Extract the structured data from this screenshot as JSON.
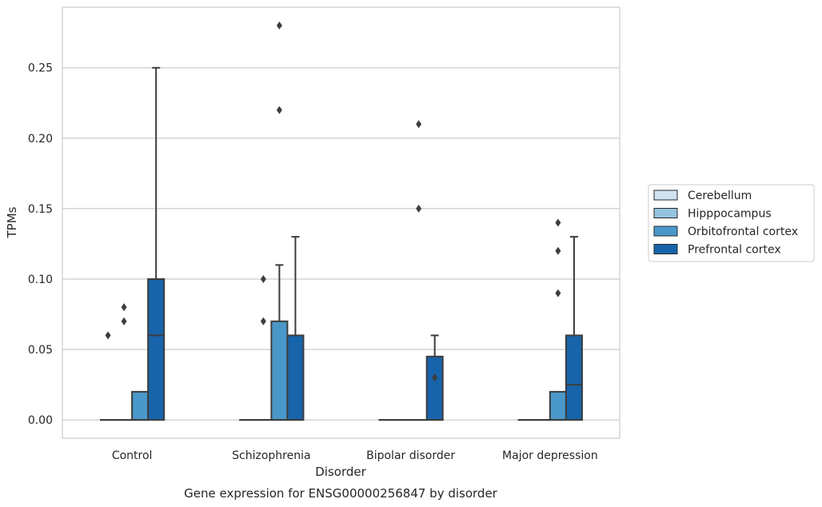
{
  "chart_data": {
    "type": "box",
    "title": "",
    "caption": "Gene expression for ENSG00000256847 by disorder",
    "xlabel": "Disorder",
    "ylabel": "TPMs",
    "ylim": [
      -0.013,
      0.293
    ],
    "yticks": [
      "0.00",
      "0.05",
      "0.10",
      "0.15",
      "0.20",
      "0.25"
    ],
    "ytick_values": [
      0,
      0.05,
      0.1,
      0.15,
      0.2,
      0.25
    ],
    "grid": true,
    "legend_position": "right",
    "categories": [
      "Control",
      "Schizophrenia",
      "Bipolar disorder",
      "Major depression"
    ],
    "series": [
      {
        "name": "Cerebellum",
        "color": "#d0e1f2",
        "boxes": [
          {
            "q1": 0,
            "median": 0,
            "q3": 0,
            "whisker_low": 0,
            "whisker_high": 0,
            "outliers": [
              0.06
            ]
          },
          {
            "q1": 0,
            "median": 0,
            "q3": 0,
            "whisker_low": 0,
            "whisker_high": 0,
            "outliers": []
          },
          {
            "q1": 0,
            "median": 0,
            "q3": 0,
            "whisker_low": 0,
            "whisker_high": 0,
            "outliers": []
          },
          {
            "q1": 0,
            "median": 0,
            "q3": 0,
            "whisker_low": 0,
            "whisker_high": 0,
            "outliers": []
          }
        ]
      },
      {
        "name": "Hipppocampus",
        "color": "#94c4df",
        "boxes": [
          {
            "q1": 0,
            "median": 0,
            "q3": 0,
            "whisker_low": 0,
            "whisker_high": 0,
            "outliers": [
              0.07,
              0.08
            ]
          },
          {
            "q1": 0,
            "median": 0,
            "q3": 0,
            "whisker_low": 0,
            "whisker_high": 0,
            "outliers": [
              0.07,
              0.1
            ]
          },
          {
            "q1": 0,
            "median": 0,
            "q3": 0,
            "whisker_low": 0,
            "whisker_high": 0,
            "outliers": []
          },
          {
            "q1": 0,
            "median": 0,
            "q3": 0,
            "whisker_low": 0,
            "whisker_high": 0,
            "outliers": []
          }
        ]
      },
      {
        "name": "Orbitofrontal cortex",
        "color": "#4a98c9",
        "boxes": [
          {
            "q1": 0,
            "median": 0,
            "q3": 0.02,
            "whisker_low": 0,
            "whisker_high": 0.02,
            "outliers": []
          },
          {
            "q1": 0,
            "median": 0,
            "q3": 0.07,
            "whisker_low": 0,
            "whisker_high": 0.11,
            "outliers": [
              0.22,
              0.28
            ]
          },
          {
            "q1": 0,
            "median": 0,
            "q3": 0,
            "whisker_low": 0,
            "whisker_high": 0,
            "outliers": [
              0.15,
              0.21
            ]
          },
          {
            "q1": 0,
            "median": 0,
            "q3": 0.02,
            "whisker_low": 0,
            "whisker_high": 0.02,
            "outliers": [
              0.09,
              0.12,
              0.14
            ]
          }
        ]
      },
      {
        "name": "Prefrontal cortex",
        "color": "#1764ab",
        "boxes": [
          {
            "q1": 0,
            "median": 0.06,
            "q3": 0.1,
            "whisker_low": 0,
            "whisker_high": 0.25,
            "outliers": []
          },
          {
            "q1": 0,
            "median": 0,
            "q3": 0.06,
            "whisker_low": 0,
            "whisker_high": 0.13,
            "outliers": []
          },
          {
            "q1": 0,
            "median": 0,
            "q3": 0.045,
            "whisker_low": 0,
            "whisker_high": 0.06,
            "outliers": [
              0.03
            ]
          },
          {
            "q1": 0,
            "median": 0.025,
            "q3": 0.06,
            "whisker_low": 0,
            "whisker_high": 0.13,
            "outliers": []
          }
        ]
      }
    ]
  },
  "colors": {
    "grid": "#cccccc",
    "frame": "#cccccc",
    "box_edge": "#3d3d3d",
    "text": "#262626"
  }
}
